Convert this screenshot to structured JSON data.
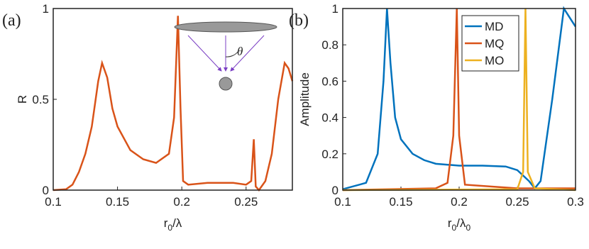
{
  "chart_data": [
    {
      "type": "line",
      "panel_label": "(a)",
      "ylabel": "R",
      "xlabel": [
        "r",
        "0",
        "/λ"
      ],
      "annotation": "θ",
      "xlim": [
        0.1,
        0.286
      ],
      "xticks": [
        0.1,
        0.15,
        0.2,
        0.25
      ],
      "ylim": [
        0,
        1
      ],
      "yticks": [
        0,
        0.5,
        1
      ],
      "series": [
        {
          "color": "#d95319",
          "x": [
            0.1,
            0.11,
            0.115,
            0.12,
            0.125,
            0.13,
            0.135,
            0.138,
            0.142,
            0.146,
            0.15,
            0.16,
            0.17,
            0.18,
            0.19,
            0.194,
            0.197,
            0.199,
            0.201,
            0.205,
            0.22,
            0.24,
            0.25,
            0.254,
            0.256,
            0.2575,
            0.26,
            0.262,
            0.265,
            0.27,
            0.275,
            0.28,
            0.283,
            0.286
          ],
          "values": [
            0,
            0.005,
            0.03,
            0.1,
            0.2,
            0.35,
            0.6,
            0.7,
            0.62,
            0.45,
            0.35,
            0.22,
            0.17,
            0.15,
            0.2,
            0.4,
            0.96,
            0.45,
            0.05,
            0.03,
            0.04,
            0.04,
            0.03,
            0.05,
            0.28,
            0.02,
            0,
            0.02,
            0.05,
            0.2,
            0.5,
            0.7,
            0.67,
            0.6
          ]
        }
      ]
    },
    {
      "type": "line",
      "panel_label": "(b)",
      "ylabel": "Amplitude",
      "xlabel": [
        "r",
        "0",
        "/λ",
        "0"
      ],
      "legend": "upper right",
      "xlim": [
        0.1,
        0.3
      ],
      "xticks": [
        0.1,
        0.15,
        0.2,
        0.25,
        0.3
      ],
      "ylim": [
        0,
        1
      ],
      "yticks": [
        0,
        0.2,
        0.4,
        0.6,
        0.8,
        1
      ],
      "series": [
        {
          "name": "MD",
          "color": "#0072bd",
          "x": [
            0.1,
            0.12,
            0.13,
            0.135,
            0.138,
            0.141,
            0.145,
            0.15,
            0.16,
            0.17,
            0.18,
            0.2,
            0.22,
            0.24,
            0.25,
            0.26,
            0.265,
            0.27,
            0.28,
            0.29,
            0.295,
            0.3
          ],
          "values": [
            0.005,
            0.04,
            0.2,
            0.6,
            1,
            0.7,
            0.4,
            0.28,
            0.2,
            0.165,
            0.145,
            0.135,
            0.135,
            0.13,
            0.11,
            0.05,
            0.01,
            0.05,
            0.5,
            1,
            0.95,
            0.9
          ]
        },
        {
          "name": "MQ",
          "color": "#d95319",
          "x": [
            0.1,
            0.18,
            0.19,
            0.195,
            0.198,
            0.2,
            0.205,
            0.25,
            0.3
          ],
          "values": [
            0,
            0.01,
            0.04,
            0.3,
            1,
            0.3,
            0.03,
            0.01,
            0.01
          ]
        },
        {
          "name": "MO",
          "color": "#edb120",
          "x": [
            0.1,
            0.25,
            0.255,
            0.257,
            0.259,
            0.265,
            0.3
          ],
          "values": [
            0,
            0.005,
            0.1,
            1,
            0.1,
            0.01,
            0
          ]
        }
      ]
    }
  ]
}
